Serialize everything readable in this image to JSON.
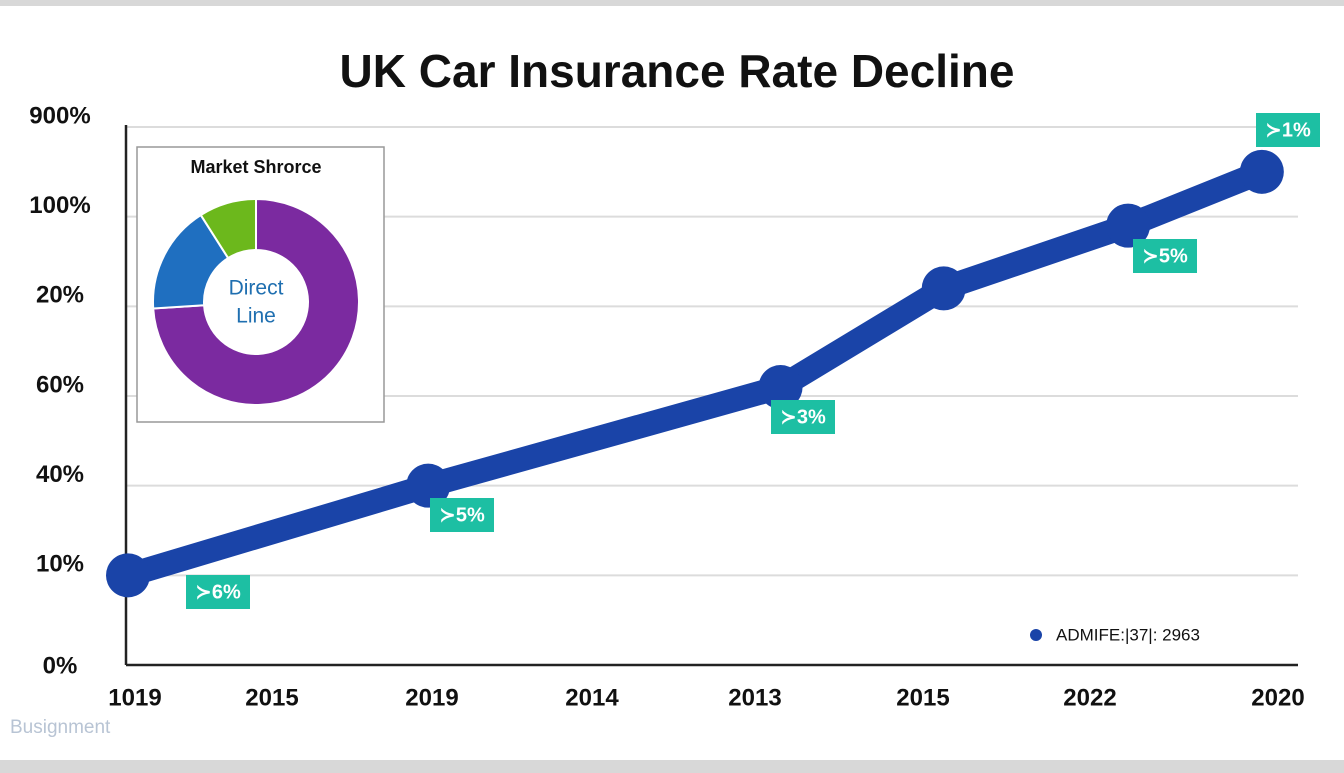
{
  "chart_data": [
    {
      "type": "line",
      "title": "UK Car Insurance Rate Decline",
      "xticks": [
        {
          "value": 0,
          "label": "1019"
        },
        {
          "value": 1,
          "label": "2015"
        },
        {
          "value": 2,
          "label": "2019"
        },
        {
          "value": 3,
          "label": "2014"
        },
        {
          "value": 4,
          "label": "2013"
        },
        {
          "value": 5,
          "label": "2015"
        },
        {
          "value": 6,
          "label": "2022"
        },
        {
          "value": 7,
          "label": "2020"
        }
      ],
      "xlim": [
        0,
        7
      ],
      "ylim": [
        0,
        6
      ],
      "yticks": [
        {
          "value": 0,
          "label": "0%"
        },
        {
          "value": 1,
          "label": "10%"
        },
        {
          "value": 2,
          "label": "40%"
        },
        {
          "value": 3,
          "label": "60%"
        },
        {
          "value": 4,
          "label": "20%"
        },
        {
          "value": 5,
          "label": "100%"
        },
        {
          "value": 6,
          "label": "900%"
        }
      ],
      "grid": true,
      "legend": "lower right",
      "series": [
        {
          "name": "ADMIFE:|37|: 2963",
          "color": "#1a44a8",
          "x": [
            0,
            1.84,
            4.0,
            5.0,
            6.13,
            6.95
          ],
          "values": [
            1.0,
            2.0,
            3.1,
            4.2,
            4.9,
            5.5
          ]
        }
      ],
      "annotations": [
        "≻6%",
        "≻5%",
        "≻3%",
        "≻5%",
        "≻1%"
      ],
      "watermark": "Busignment"
    },
    {
      "type": "pie",
      "title": "Market Shrorce",
      "center_text": [
        "Direct",
        "Line"
      ],
      "values": [
        74,
        17,
        9
      ],
      "colors": [
        "#7b2aa0",
        "#1f6fc0",
        "#6cb81c"
      ]
    }
  ]
}
